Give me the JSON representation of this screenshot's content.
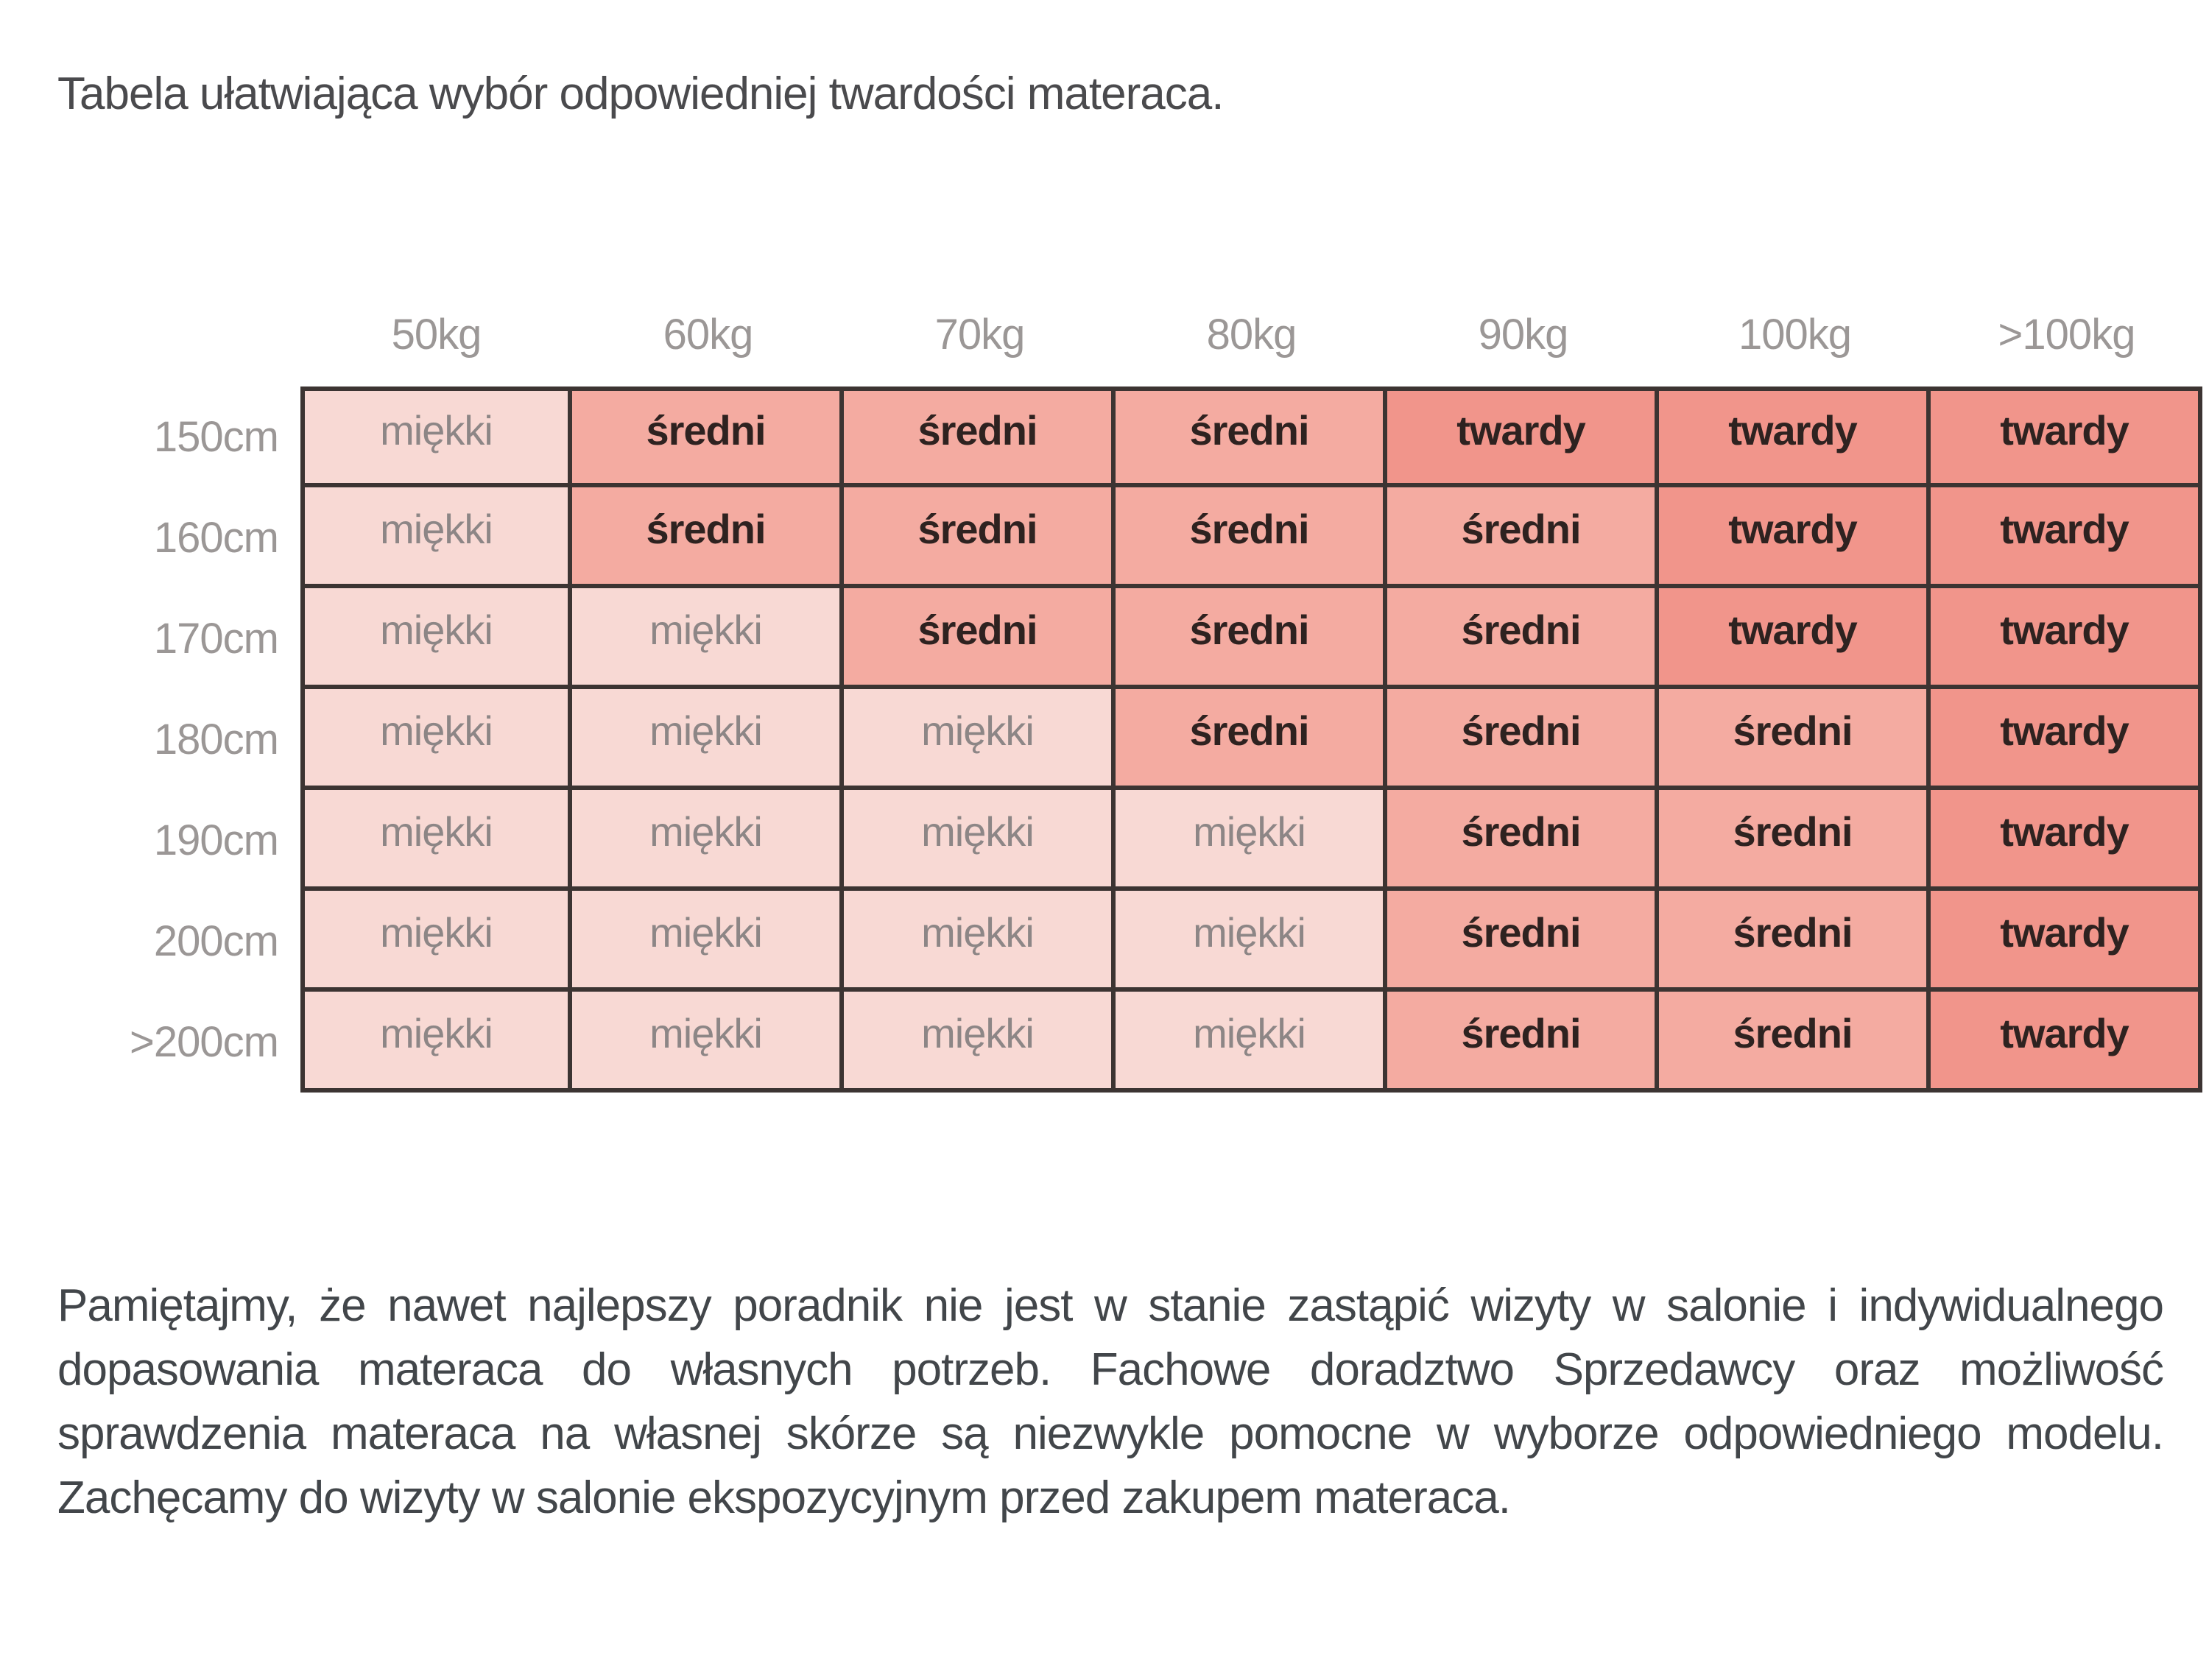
{
  "title": "Tabela ułatwiająca wybór odpowiedniej twardości materaca.",
  "table": {
    "column_headers": [
      "50kg",
      "60kg",
      "70kg",
      "80kg",
      "90kg",
      "100kg",
      ">100kg"
    ],
    "row_headers": [
      "150cm",
      "160cm",
      "170cm",
      "180cm",
      "190cm",
      "200cm",
      ">200cm"
    ],
    "cells": [
      [
        "miękki",
        "średni",
        "średni",
        "średni",
        "twardy",
        "twardy",
        "twardy"
      ],
      [
        "miękki",
        "średni",
        "średni",
        "średni",
        "średni",
        "twardy",
        "twardy"
      ],
      [
        "miękki",
        "miękki",
        "średni",
        "średni",
        "średni",
        "twardy",
        "twardy"
      ],
      [
        "miękki",
        "miękki",
        "miękki",
        "średni",
        "średni",
        "średni",
        "twardy"
      ],
      [
        "miękki",
        "miękki",
        "miękki",
        "miękki",
        "średni",
        "średni",
        "twardy"
      ],
      [
        "miękki",
        "miękki",
        "miękki",
        "miękki",
        "średni",
        "średni",
        "twardy"
      ],
      [
        "miękki",
        "miękki",
        "miękki",
        "miękki",
        "średni",
        "średni",
        "twardy"
      ]
    ],
    "value_styles": {
      "miękki": {
        "bg": "#f8d9d4",
        "text": "#8d8686",
        "bold": false
      },
      "średni": {
        "bg": "#f4aba1",
        "text": "#2e2220",
        "bold": true
      },
      "twardy": {
        "bg": "#f1958b",
        "text": "#2e2220",
        "bold": true
      }
    },
    "border_color": "#3c3432",
    "header_text_color": "#9b9796"
  },
  "footer_paragraph": "Pamiętajmy, że nawet najlepszy poradnik nie jest w stanie zastąpić wizyty w salonie i indywidualnego dopasowania materaca do własnych potrzeb. Fachowe doradztwo Sprzedawcy oraz możliwość sprawdzenia materaca na własnej skórze są niezwykle pomocne w wyborze odpowiedniego modelu. Zachęcamy do wizyty w salonie ekspozycyjnym przed zakupem materaca."
}
